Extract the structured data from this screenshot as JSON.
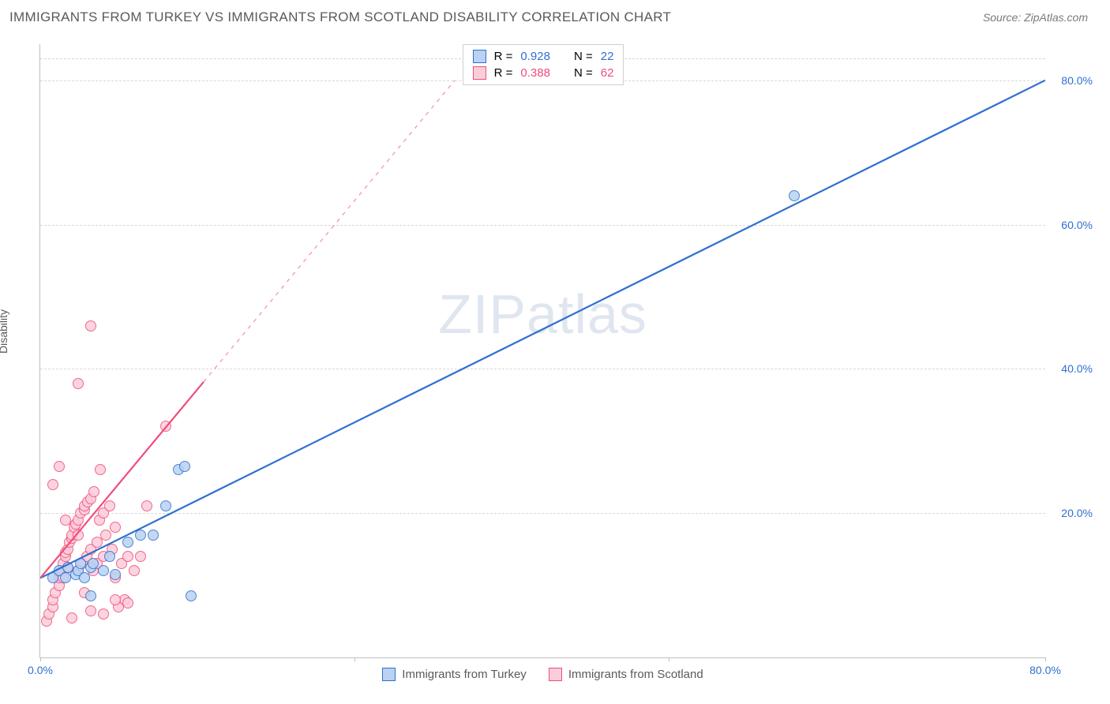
{
  "title": "IMMIGRANTS FROM TURKEY VS IMMIGRANTS FROM SCOTLAND DISABILITY CORRELATION CHART",
  "source_label": "Source:",
  "source_name": "ZipAtlas.com",
  "y_axis_label": "Disability",
  "watermark": {
    "left": "ZIP",
    "right": "atlas"
  },
  "chart": {
    "type": "scatter",
    "xlim": [
      0,
      80
    ],
    "ylim": [
      0,
      85
    ],
    "x_ticks": [
      {
        "v": 0,
        "label": "0.0%"
      },
      {
        "v": 80,
        "label": "80.0%"
      }
    ],
    "x_tick_marks": [
      0,
      25,
      50,
      80
    ],
    "y_ticks": [
      {
        "v": 20,
        "label": "20.0%"
      },
      {
        "v": 40,
        "label": "40.0%"
      },
      {
        "v": 60,
        "label": "60.0%"
      },
      {
        "v": 80,
        "label": "80.0%"
      }
    ],
    "x_tick_color": "#2f6fd0",
    "y_tick_color": "#2f6fd0",
    "grid_color": "#d8d8d8",
    "background": "#ffffff",
    "marker_radius": 7,
    "marker_stroke_width": 1.5,
    "series": [
      {
        "name": "Immigrants from Turkey",
        "color_stroke": "#2f6fd0",
        "color_fill": "#b9d2f2",
        "R": "0.928",
        "N": "22",
        "trend": {
          "x1": 0,
          "y1": 11,
          "x2": 80,
          "y2": 80,
          "solid_to_x": 80
        },
        "points": [
          [
            1,
            11
          ],
          [
            1.5,
            12
          ],
          [
            2,
            11
          ],
          [
            2.2,
            12.5
          ],
          [
            2.8,
            11.5
          ],
          [
            3,
            12
          ],
          [
            3.2,
            13
          ],
          [
            3.5,
            11
          ],
          [
            4,
            12.5
          ],
          [
            4.2,
            13
          ],
          [
            5,
            12
          ],
          [
            5.5,
            14
          ],
          [
            6,
            11.5
          ],
          [
            7,
            16
          ],
          [
            8,
            17
          ],
          [
            9,
            17
          ],
          [
            10,
            21
          ],
          [
            11,
            26
          ],
          [
            11.5,
            26.5
          ],
          [
            12,
            8.5
          ],
          [
            4,
            8.5
          ],
          [
            60,
            64
          ]
        ]
      },
      {
        "name": "Immigrants from Scotland",
        "color_stroke": "#ef4d7a",
        "color_fill": "#fbcdda",
        "R": "0.388",
        "N": "62",
        "trend": {
          "x1": 0,
          "y1": 11,
          "x2": 33,
          "y2": 80,
          "solid_to_x": 13
        },
        "points": [
          [
            0.5,
            5
          ],
          [
            0.7,
            6
          ],
          [
            1,
            7
          ],
          [
            1,
            8
          ],
          [
            1.2,
            9
          ],
          [
            1.5,
            10
          ],
          [
            1.5,
            11
          ],
          [
            1.7,
            12
          ],
          [
            1.8,
            13
          ],
          [
            2,
            14
          ],
          [
            2,
            14.5
          ],
          [
            2.2,
            15
          ],
          [
            2.3,
            16
          ],
          [
            2.5,
            16.5
          ],
          [
            2.5,
            17
          ],
          [
            2.7,
            18
          ],
          [
            2.8,
            18.5
          ],
          [
            3,
            19
          ],
          [
            3,
            12
          ],
          [
            3.2,
            20
          ],
          [
            3.3,
            13
          ],
          [
            3.5,
            20.5
          ],
          [
            3.5,
            21
          ],
          [
            3.7,
            14
          ],
          [
            3.8,
            21.5
          ],
          [
            4,
            22
          ],
          [
            4,
            15
          ],
          [
            4.2,
            12
          ],
          [
            4.3,
            23
          ],
          [
            4.5,
            16
          ],
          [
            4.5,
            13
          ],
          [
            4.7,
            19
          ],
          [
            4.8,
            26
          ],
          [
            5,
            20
          ],
          [
            5,
            14
          ],
          [
            5.2,
            17
          ],
          [
            5.5,
            21
          ],
          [
            5.7,
            15
          ],
          [
            6,
            18
          ],
          [
            6,
            11
          ],
          [
            6.2,
            7
          ],
          [
            6.5,
            13
          ],
          [
            6.7,
            8
          ],
          [
            7,
            14
          ],
          [
            7,
            7.5
          ],
          [
            7.5,
            12
          ],
          [
            8,
            14
          ],
          [
            8.5,
            21
          ],
          [
            1,
            24
          ],
          [
            1.5,
            26.5
          ],
          [
            2,
            19
          ],
          [
            3,
            17
          ],
          [
            3,
            38
          ],
          [
            4,
            46
          ],
          [
            10,
            32
          ],
          [
            6,
            8
          ],
          [
            5,
            6
          ],
          [
            4,
            6.5
          ],
          [
            2.5,
            5.5
          ],
          [
            3.5,
            9
          ],
          [
            1.8,
            11
          ],
          [
            2.2,
            12.5
          ]
        ]
      }
    ]
  },
  "legend_top": {
    "R_label": "R =",
    "N_label": "N ="
  },
  "legend_bottom": {
    "items": [
      "Immigrants from Turkey",
      "Immigrants from Scotland"
    ]
  }
}
